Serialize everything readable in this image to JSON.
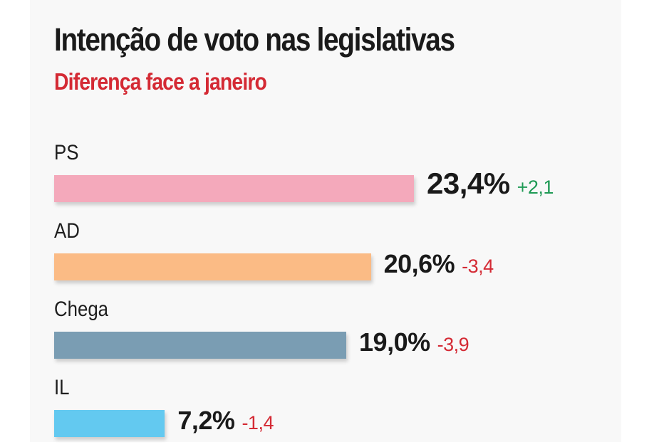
{
  "chart_data": {
    "type": "bar",
    "orientation": "horizontal",
    "title": "Intenção de voto nas legislativas",
    "subtitle": "Diferença face a janeiro",
    "categories": [
      "PS",
      "AD",
      "Chega",
      "IL"
    ],
    "values": [
      23.4,
      20.6,
      19.0,
      7.2
    ],
    "value_labels": [
      "23,4%",
      "20,6%",
      "19,0%",
      "7,2%"
    ],
    "changes": [
      2.1,
      -3.4,
      -3.9,
      -1.4
    ],
    "change_labels": [
      "+2,1",
      "-3,4",
      "-3,9",
      "-1,4"
    ],
    "bar_colors": [
      "#f4a9bb",
      "#fbbb85",
      "#7a9db3",
      "#63c9f0"
    ],
    "unit": "%",
    "xlabel": "",
    "ylabel": "",
    "grid": false,
    "legend": "none"
  },
  "colors": {
    "positive_change": "#1f9a55",
    "negative_change": "#d42a34",
    "title": "#1a1a1a",
    "subtitle": "#d42a34"
  }
}
